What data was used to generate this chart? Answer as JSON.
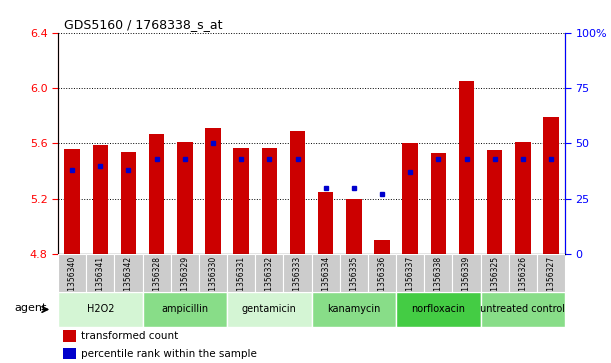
{
  "title": "GDS5160 / 1768338_s_at",
  "samples": [
    "GSM1356340",
    "GSM1356341",
    "GSM1356342",
    "GSM1356328",
    "GSM1356329",
    "GSM1356330",
    "GSM1356331",
    "GSM1356332",
    "GSM1356333",
    "GSM1356334",
    "GSM1356335",
    "GSM1356336",
    "GSM1356337",
    "GSM1356338",
    "GSM1356339",
    "GSM1356325",
    "GSM1356326",
    "GSM1356327"
  ],
  "transformed_counts": [
    5.56,
    5.59,
    5.54,
    5.67,
    5.61,
    5.71,
    5.57,
    5.57,
    5.69,
    5.25,
    5.2,
    4.9,
    5.6,
    5.53,
    6.05,
    5.55,
    5.61,
    5.79
  ],
  "percentile_ranks": [
    38,
    40,
    38,
    43,
    43,
    50,
    43,
    43,
    43,
    30,
    30,
    27,
    37,
    43,
    43,
    43,
    43,
    43
  ],
  "groups": [
    {
      "name": "H2O2",
      "start": 0,
      "end": 3,
      "color": "#d4f5d4"
    },
    {
      "name": "ampicillin",
      "start": 3,
      "end": 6,
      "color": "#88dd88"
    },
    {
      "name": "gentamicin",
      "start": 6,
      "end": 9,
      "color": "#d4f5d4"
    },
    {
      "name": "kanamycin",
      "start": 9,
      "end": 12,
      "color": "#88dd88"
    },
    {
      "name": "norfloxacin",
      "start": 12,
      "end": 15,
      "color": "#44cc44"
    },
    {
      "name": "untreated control",
      "start": 15,
      "end": 18,
      "color": "#88dd88"
    }
  ],
  "ylim_left": [
    4.8,
    6.4
  ],
  "ylim_right": [
    0,
    100
  ],
  "yticks_left": [
    4.8,
    5.2,
    5.6,
    6.0,
    6.4
  ],
  "yticks_right": [
    0,
    25,
    50,
    75,
    100
  ],
  "bar_color": "#cc0000",
  "dot_color": "#0000cc",
  "base": 4.8,
  "agent_label": "agent",
  "legend1": "transformed count",
  "legend2": "percentile rank within the sample",
  "background_color": "#ffffff"
}
